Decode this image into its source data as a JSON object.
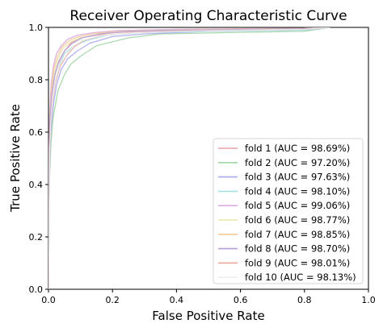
{
  "chart_data": {
    "type": "line",
    "title": "Receiver Operating Characteristic Curve",
    "xlabel": "False Positive Rate",
    "ylabel": "True Positive Rate",
    "xlim": [
      0,
      1
    ],
    "ylim": [
      0,
      1
    ],
    "xticks": [
      "0.0",
      "0.2",
      "0.4",
      "0.6",
      "0.8",
      "1.0"
    ],
    "yticks": [
      "0.0",
      "0.2",
      "0.4",
      "0.6",
      "0.8",
      "1.0"
    ],
    "grid": false,
    "legend_position": "bottom-right",
    "series": [
      {
        "name": "fold 1 (AUC = 98.69%)",
        "color": "#e8a0a6",
        "x": [
          0,
          0.002,
          0.005,
          0.01,
          0.02,
          0.03,
          0.05,
          0.07,
          0.1,
          0.15,
          0.2,
          0.3,
          0.5,
          0.8,
          0.88
        ],
        "y": [
          0,
          0.5,
          0.64,
          0.74,
          0.82,
          0.86,
          0.91,
          0.94,
          0.96,
          0.97,
          0.98,
          0.985,
          0.99,
          0.995,
          1.0
        ]
      },
      {
        "name": "fold 2 (AUC = 97.20%)",
        "color": "#9fd6a4",
        "x": [
          0,
          0.003,
          0.008,
          0.015,
          0.03,
          0.05,
          0.07,
          0.1,
          0.15,
          0.25,
          0.35,
          0.55,
          0.8,
          0.88
        ],
        "y": [
          0,
          0.42,
          0.56,
          0.66,
          0.76,
          0.82,
          0.86,
          0.89,
          0.93,
          0.96,
          0.975,
          0.98,
          0.985,
          1.0
        ]
      },
      {
        "name": "fold 3 (AUC = 97.63%)",
        "color": "#a9a9ee",
        "x": [
          0,
          0.003,
          0.007,
          0.015,
          0.025,
          0.04,
          0.06,
          0.09,
          0.13,
          0.2,
          0.3,
          0.5,
          0.8,
          0.88
        ],
        "y": [
          0,
          0.45,
          0.6,
          0.7,
          0.78,
          0.84,
          0.88,
          0.91,
          0.94,
          0.965,
          0.975,
          0.985,
          0.99,
          1.0
        ]
      },
      {
        "name": "fold 4 (AUC = 98.10%)",
        "color": "#a6e0e3",
        "x": [
          0,
          0.002,
          0.006,
          0.012,
          0.022,
          0.035,
          0.05,
          0.08,
          0.12,
          0.18,
          0.28,
          0.5,
          0.8,
          0.88
        ],
        "y": [
          0,
          0.48,
          0.62,
          0.72,
          0.8,
          0.86,
          0.9,
          0.93,
          0.95,
          0.97,
          0.98,
          0.985,
          0.99,
          1.0
        ]
      },
      {
        "name": "fold 5 (AUC = 99.06%)",
        "color": "#dcaadf",
        "x": [
          0,
          0.002,
          0.004,
          0.008,
          0.015,
          0.025,
          0.04,
          0.06,
          0.09,
          0.14,
          0.22,
          0.4,
          0.8,
          0.88
        ],
        "y": [
          0,
          0.55,
          0.68,
          0.78,
          0.85,
          0.9,
          0.93,
          0.955,
          0.97,
          0.98,
          0.988,
          0.993,
          0.997,
          1.0
        ]
      },
      {
        "name": "fold 6 (AUC = 98.77%)",
        "color": "#e6e6a8",
        "x": [
          0,
          0.002,
          0.005,
          0.01,
          0.018,
          0.03,
          0.045,
          0.07,
          0.1,
          0.16,
          0.25,
          0.45,
          0.8,
          0.88
        ],
        "y": [
          0,
          0.52,
          0.66,
          0.75,
          0.83,
          0.88,
          0.92,
          0.945,
          0.96,
          0.975,
          0.985,
          0.99,
          0.995,
          1.0
        ]
      },
      {
        "name": "fold 7 (AUC = 98.85%)",
        "color": "#f4c99a",
        "x": [
          0,
          0.002,
          0.005,
          0.009,
          0.016,
          0.028,
          0.042,
          0.065,
          0.095,
          0.15,
          0.24,
          0.45,
          0.8,
          0.88
        ],
        "y": [
          0,
          0.53,
          0.67,
          0.76,
          0.84,
          0.89,
          0.925,
          0.95,
          0.965,
          0.978,
          0.986,
          0.992,
          0.996,
          1.0
        ]
      },
      {
        "name": "fold 8 (AUC = 98.70%)",
        "color": "#b79ed8",
        "x": [
          0,
          0.002,
          0.005,
          0.01,
          0.02,
          0.032,
          0.05,
          0.075,
          0.105,
          0.16,
          0.25,
          0.45,
          0.8,
          0.88
        ],
        "y": [
          0,
          0.5,
          0.65,
          0.74,
          0.82,
          0.87,
          0.91,
          0.94,
          0.96,
          0.975,
          0.985,
          0.99,
          0.995,
          1.0
        ]
      },
      {
        "name": "fold 9 (AUC = 98.01%)",
        "color": "#e7a79a",
        "x": [
          0,
          0.003,
          0.006,
          0.012,
          0.022,
          0.036,
          0.055,
          0.08,
          0.11,
          0.17,
          0.27,
          0.48,
          0.8,
          0.88
        ],
        "y": [
          0,
          0.47,
          0.61,
          0.71,
          0.79,
          0.85,
          0.89,
          0.925,
          0.95,
          0.97,
          0.98,
          0.987,
          0.993,
          1.0
        ]
      },
      {
        "name": "fold 10 (AUC = 98.13%)",
        "color": "#eeeeee",
        "x": [
          0,
          0.003,
          0.006,
          0.012,
          0.022,
          0.035,
          0.055,
          0.08,
          0.11,
          0.17,
          0.27,
          0.48,
          0.8,
          0.88
        ],
        "y": [
          0,
          0.48,
          0.62,
          0.72,
          0.8,
          0.855,
          0.895,
          0.93,
          0.952,
          0.97,
          0.98,
          0.987,
          0.993,
          1.0
        ]
      }
    ]
  }
}
